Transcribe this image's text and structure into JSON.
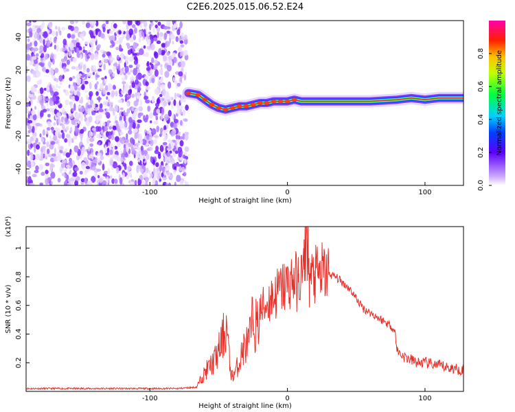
{
  "chart_data": [
    {
      "type": "heatmap",
      "title": "C2E6.2025.015.06.52.E24",
      "xlabel": "Height of straight line (km)",
      "ylabel": "Frequency (Hz)",
      "xlim": [
        -190,
        128
      ],
      "ylim": [
        -50,
        50
      ],
      "xticks": [
        -100,
        0,
        100
      ],
      "xtick_labels": [
        "-100",
        "0",
        "100"
      ],
      "yticks": [
        -40,
        -20,
        0,
        20,
        40
      ],
      "ytick_labels": [
        "-40",
        "-20",
        "0",
        "20",
        "40"
      ],
      "noise_region": {
        "x_from": -190,
        "x_to": -73,
        "description_values": "scattered purple speckle, low amplitude"
      },
      "ridge": {
        "x": [
          -72,
          -65,
          -60,
          -55,
          -50,
          -45,
          -40,
          -35,
          -30,
          -25,
          -20,
          -15,
          -10,
          -5,
          0,
          5,
          10,
          20,
          40,
          60,
          80,
          90,
          100,
          110,
          128
        ],
        "y": [
          6,
          5,
          2,
          -1,
          -3,
          -4,
          -3,
          -2,
          -2,
          -1,
          0,
          0,
          1,
          1,
          1,
          2,
          1,
          1,
          1,
          1,
          2,
          3,
          2,
          3,
          3
        ]
      },
      "colorbar": {
        "label": "Normalized spectral amplitude",
        "range": [
          0,
          1
        ],
        "ticks": [
          0.0,
          0.2,
          0.4,
          0.6,
          0.8
        ],
        "tick_labels": [
          "0.0",
          "0.2",
          "0.4",
          "0.6",
          "0.8"
        ]
      }
    },
    {
      "type": "line",
      "title": "",
      "xlabel": "Height of straight line (km)",
      "ylabel": "SNR (10 * v/v)",
      "scale_label": "(x10⁴)",
      "xlim": [
        -190,
        128
      ],
      "ylim": [
        0,
        1.15
      ],
      "xticks": [
        -100,
        0,
        100
      ],
      "xtick_labels": [
        "-100",
        "0",
        "100"
      ],
      "yticks": [
        0.2,
        0.4,
        0.6,
        0.8,
        1.0
      ],
      "ytick_labels": [
        "0.2",
        "0.4",
        "0.6",
        "0.8",
        "1"
      ],
      "series": [
        {
          "name": "SNR",
          "color": "#e8302a",
          "x": [
            -190,
            -170,
            -150,
            -120,
            -100,
            -80,
            -66,
            -62,
            -58,
            -54,
            -50,
            -46,
            -44,
            -42,
            -40,
            -38,
            -35,
            -32,
            -28,
            -25,
            -22,
            -20,
            -16,
            -12,
            -8,
            -4,
            0,
            4,
            8,
            12,
            14,
            16,
            20,
            25,
            30,
            35,
            40,
            45,
            50,
            55,
            60,
            65,
            70,
            75,
            78,
            80,
            85,
            90,
            95,
            100,
            105,
            110,
            115,
            120,
            128
          ],
          "y": [
            0.02,
            0.02,
            0.02,
            0.02,
            0.02,
            0.02,
            0.03,
            0.1,
            0.16,
            0.2,
            0.28,
            0.4,
            0.45,
            0.18,
            0.1,
            0.14,
            0.2,
            0.3,
            0.34,
            0.5,
            0.45,
            0.55,
            0.6,
            0.65,
            0.68,
            0.72,
            0.75,
            0.78,
            0.76,
            0.85,
            1.15,
            0.78,
            0.8,
            0.82,
            0.82,
            0.8,
            0.76,
            0.72,
            0.65,
            0.58,
            0.55,
            0.52,
            0.49,
            0.46,
            0.42,
            0.28,
            0.24,
            0.22,
            0.2,
            0.2,
            0.19,
            0.18,
            0.17,
            0.16,
            0.15
          ]
        }
      ]
    }
  ]
}
